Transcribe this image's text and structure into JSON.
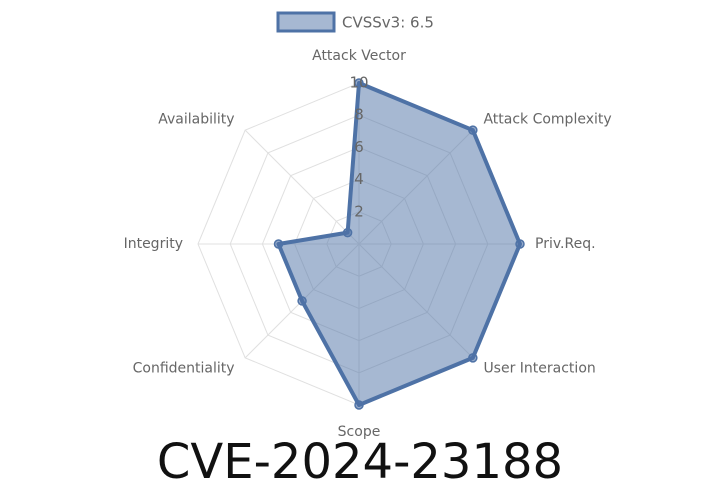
{
  "chart_data": {
    "type": "radar",
    "title": "CVE-2024-23188",
    "categories": [
      "Attack Vector",
      "Attack Complexity",
      "Priv.Req.",
      "User Interaction",
      "Scope",
      "Confidentiality",
      "Integrity",
      "Availability"
    ],
    "series": [
      {
        "name": "CVSSv3: 6.5",
        "color": "#4e72a6",
        "values": [
          10,
          10,
          10,
          10,
          10,
          5,
          5,
          1
        ]
      }
    ],
    "ylim": [
      0,
      10
    ],
    "yticks": [
      2,
      4,
      6,
      8,
      10
    ],
    "grid": true,
    "legend": "top"
  }
}
